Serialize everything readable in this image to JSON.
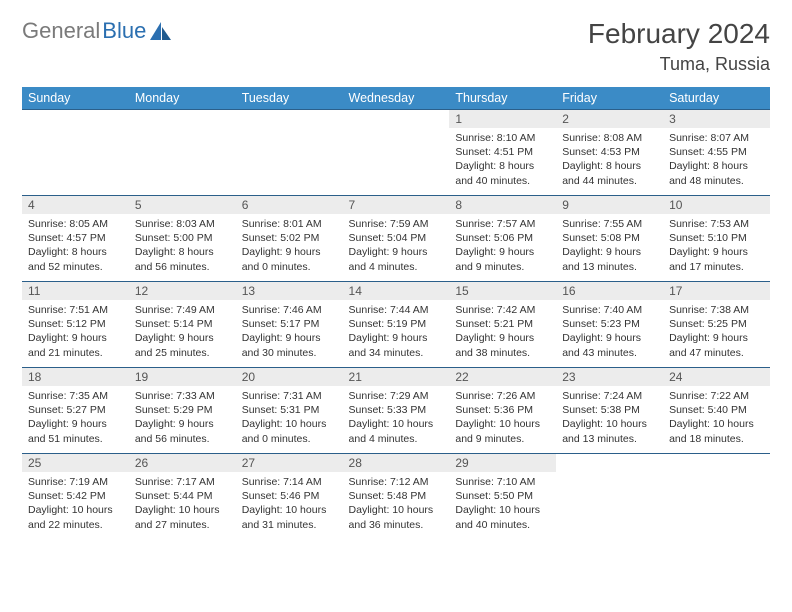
{
  "logo": {
    "part1": "General",
    "part2": "Blue"
  },
  "month_title": "February 2024",
  "location": "Tuma, Russia",
  "colors": {
    "header_bg": "#3b8bc6",
    "header_text": "#ffffff",
    "daynum_bg": "#ececec",
    "border": "#2b5f8a",
    "logo_gray": "#7a7a7a",
    "logo_blue": "#2b6fb0"
  },
  "day_labels": [
    "Sunday",
    "Monday",
    "Tuesday",
    "Wednesday",
    "Thursday",
    "Friday",
    "Saturday"
  ],
  "weeks": [
    [
      null,
      null,
      null,
      null,
      {
        "d": "1",
        "sunrise": "Sunrise: 8:10 AM",
        "sunset": "Sunset: 4:51 PM",
        "daylight": "Daylight: 8 hours and 40 minutes."
      },
      {
        "d": "2",
        "sunrise": "Sunrise: 8:08 AM",
        "sunset": "Sunset: 4:53 PM",
        "daylight": "Daylight: 8 hours and 44 minutes."
      },
      {
        "d": "3",
        "sunrise": "Sunrise: 8:07 AM",
        "sunset": "Sunset: 4:55 PM",
        "daylight": "Daylight: 8 hours and 48 minutes."
      }
    ],
    [
      {
        "d": "4",
        "sunrise": "Sunrise: 8:05 AM",
        "sunset": "Sunset: 4:57 PM",
        "daylight": "Daylight: 8 hours and 52 minutes."
      },
      {
        "d": "5",
        "sunrise": "Sunrise: 8:03 AM",
        "sunset": "Sunset: 5:00 PM",
        "daylight": "Daylight: 8 hours and 56 minutes."
      },
      {
        "d": "6",
        "sunrise": "Sunrise: 8:01 AM",
        "sunset": "Sunset: 5:02 PM",
        "daylight": "Daylight: 9 hours and 0 minutes."
      },
      {
        "d": "7",
        "sunrise": "Sunrise: 7:59 AM",
        "sunset": "Sunset: 5:04 PM",
        "daylight": "Daylight: 9 hours and 4 minutes."
      },
      {
        "d": "8",
        "sunrise": "Sunrise: 7:57 AM",
        "sunset": "Sunset: 5:06 PM",
        "daylight": "Daylight: 9 hours and 9 minutes."
      },
      {
        "d": "9",
        "sunrise": "Sunrise: 7:55 AM",
        "sunset": "Sunset: 5:08 PM",
        "daylight": "Daylight: 9 hours and 13 minutes."
      },
      {
        "d": "10",
        "sunrise": "Sunrise: 7:53 AM",
        "sunset": "Sunset: 5:10 PM",
        "daylight": "Daylight: 9 hours and 17 minutes."
      }
    ],
    [
      {
        "d": "11",
        "sunrise": "Sunrise: 7:51 AM",
        "sunset": "Sunset: 5:12 PM",
        "daylight": "Daylight: 9 hours and 21 minutes."
      },
      {
        "d": "12",
        "sunrise": "Sunrise: 7:49 AM",
        "sunset": "Sunset: 5:14 PM",
        "daylight": "Daylight: 9 hours and 25 minutes."
      },
      {
        "d": "13",
        "sunrise": "Sunrise: 7:46 AM",
        "sunset": "Sunset: 5:17 PM",
        "daylight": "Daylight: 9 hours and 30 minutes."
      },
      {
        "d": "14",
        "sunrise": "Sunrise: 7:44 AM",
        "sunset": "Sunset: 5:19 PM",
        "daylight": "Daylight: 9 hours and 34 minutes."
      },
      {
        "d": "15",
        "sunrise": "Sunrise: 7:42 AM",
        "sunset": "Sunset: 5:21 PM",
        "daylight": "Daylight: 9 hours and 38 minutes."
      },
      {
        "d": "16",
        "sunrise": "Sunrise: 7:40 AM",
        "sunset": "Sunset: 5:23 PM",
        "daylight": "Daylight: 9 hours and 43 minutes."
      },
      {
        "d": "17",
        "sunrise": "Sunrise: 7:38 AM",
        "sunset": "Sunset: 5:25 PM",
        "daylight": "Daylight: 9 hours and 47 minutes."
      }
    ],
    [
      {
        "d": "18",
        "sunrise": "Sunrise: 7:35 AM",
        "sunset": "Sunset: 5:27 PM",
        "daylight": "Daylight: 9 hours and 51 minutes."
      },
      {
        "d": "19",
        "sunrise": "Sunrise: 7:33 AM",
        "sunset": "Sunset: 5:29 PM",
        "daylight": "Daylight: 9 hours and 56 minutes."
      },
      {
        "d": "20",
        "sunrise": "Sunrise: 7:31 AM",
        "sunset": "Sunset: 5:31 PM",
        "daylight": "Daylight: 10 hours and 0 minutes."
      },
      {
        "d": "21",
        "sunrise": "Sunrise: 7:29 AM",
        "sunset": "Sunset: 5:33 PM",
        "daylight": "Daylight: 10 hours and 4 minutes."
      },
      {
        "d": "22",
        "sunrise": "Sunrise: 7:26 AM",
        "sunset": "Sunset: 5:36 PM",
        "daylight": "Daylight: 10 hours and 9 minutes."
      },
      {
        "d": "23",
        "sunrise": "Sunrise: 7:24 AM",
        "sunset": "Sunset: 5:38 PM",
        "daylight": "Daylight: 10 hours and 13 minutes."
      },
      {
        "d": "24",
        "sunrise": "Sunrise: 7:22 AM",
        "sunset": "Sunset: 5:40 PM",
        "daylight": "Daylight: 10 hours and 18 minutes."
      }
    ],
    [
      {
        "d": "25",
        "sunrise": "Sunrise: 7:19 AM",
        "sunset": "Sunset: 5:42 PM",
        "daylight": "Daylight: 10 hours and 22 minutes."
      },
      {
        "d": "26",
        "sunrise": "Sunrise: 7:17 AM",
        "sunset": "Sunset: 5:44 PM",
        "daylight": "Daylight: 10 hours and 27 minutes."
      },
      {
        "d": "27",
        "sunrise": "Sunrise: 7:14 AM",
        "sunset": "Sunset: 5:46 PM",
        "daylight": "Daylight: 10 hours and 31 minutes."
      },
      {
        "d": "28",
        "sunrise": "Sunrise: 7:12 AM",
        "sunset": "Sunset: 5:48 PM",
        "daylight": "Daylight: 10 hours and 36 minutes."
      },
      {
        "d": "29",
        "sunrise": "Sunrise: 7:10 AM",
        "sunset": "Sunset: 5:50 PM",
        "daylight": "Daylight: 10 hours and 40 minutes."
      },
      null,
      null
    ]
  ]
}
